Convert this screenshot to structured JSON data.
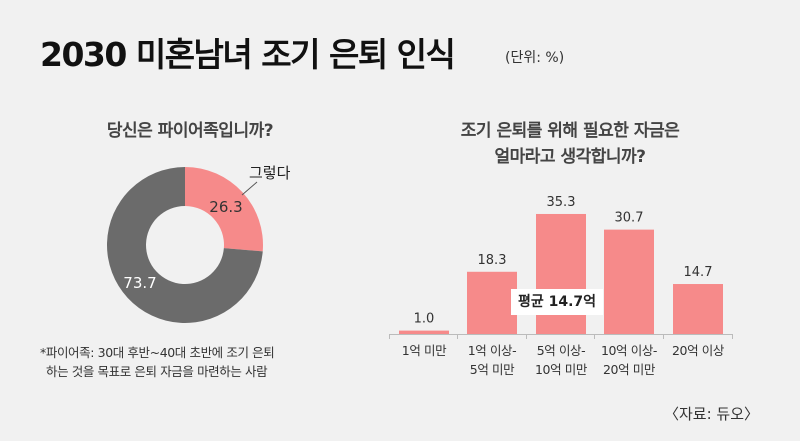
{
  "header": {
    "title": "2030 미혼남녀 조기 은퇴 인식",
    "unit": "(단위: %)"
  },
  "chart_data": [
    {
      "type": "pie",
      "donut": true,
      "title": "당신은 파이어족입니까?",
      "slices": [
        {
          "label": "그렇다",
          "value": 26.3,
          "color": "#f68a8a"
        },
        {
          "label": "",
          "value": 73.7,
          "color": "#6b6b6b"
        }
      ]
    },
    {
      "type": "bar",
      "title_lines": [
        "조기 은퇴를 위해 필요한 자금은",
        "얼마라고 생각합니까?"
      ],
      "categories": [
        [
          "1억 미만"
        ],
        [
          "1억 이상-",
          "5억 미만"
        ],
        [
          "5억 이상-",
          "10억 미만"
        ],
        [
          "10억 이상-",
          "20억 미만"
        ],
        [
          "20억 이상"
        ]
      ],
      "values": [
        1.0,
        18.3,
        35.3,
        30.7,
        14.7
      ],
      "value_labels": [
        "1.0",
        "18.3",
        "35.3",
        "30.7",
        "14.7"
      ],
      "color": "#f68a8a",
      "annotation": "평균 14.7억",
      "grid": false
    }
  ],
  "footnote": [
    "*파이어족: 30대 후반~40대 초반에 조기 은퇴",
    "하는 것을 목표로 은퇴 자금을 마련하는 사람"
  ],
  "source": "〈자료: 듀오〉"
}
